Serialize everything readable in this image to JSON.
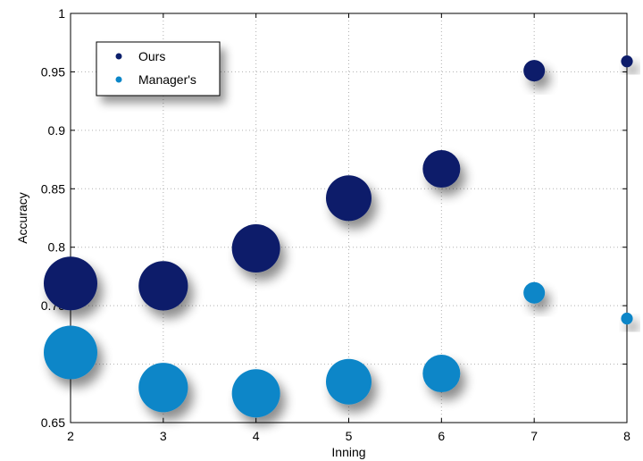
{
  "chart_data": {
    "type": "scatter",
    "title": "",
    "xlabel": "Inning",
    "ylabel": "Accuracy",
    "xlim": [
      2,
      8
    ],
    "ylim": [
      0.65,
      1
    ],
    "xticks": [
      "2",
      "3",
      "4",
      "5",
      "6",
      "7",
      "8"
    ],
    "yticks": [
      "0.65",
      "0.7",
      "0.75",
      "0.8",
      "0.85",
      "0.9",
      "0.95",
      "1"
    ],
    "grid": true,
    "legend_position": "top-left",
    "series": [
      {
        "name": "Ours",
        "color": "#0b1f6b",
        "x": [
          2,
          3,
          4,
          5,
          6,
          7,
          8
        ],
        "y": [
          0.769,
          0.767,
          0.799,
          0.842,
          0.867,
          0.951,
          0.959
        ],
        "size": [
          1.0,
          0.92,
          0.9,
          0.85,
          0.7,
          0.4,
          0.22
        ]
      },
      {
        "name": "Manager's",
        "color": "#0b86c8",
        "x": [
          2,
          3,
          4,
          5,
          6,
          7,
          8
        ],
        "y": [
          0.71,
          0.68,
          0.675,
          0.685,
          0.692,
          0.761,
          0.739
        ],
        "size": [
          1.0,
          0.92,
          0.9,
          0.85,
          0.7,
          0.4,
          0.22
        ]
      }
    ]
  }
}
